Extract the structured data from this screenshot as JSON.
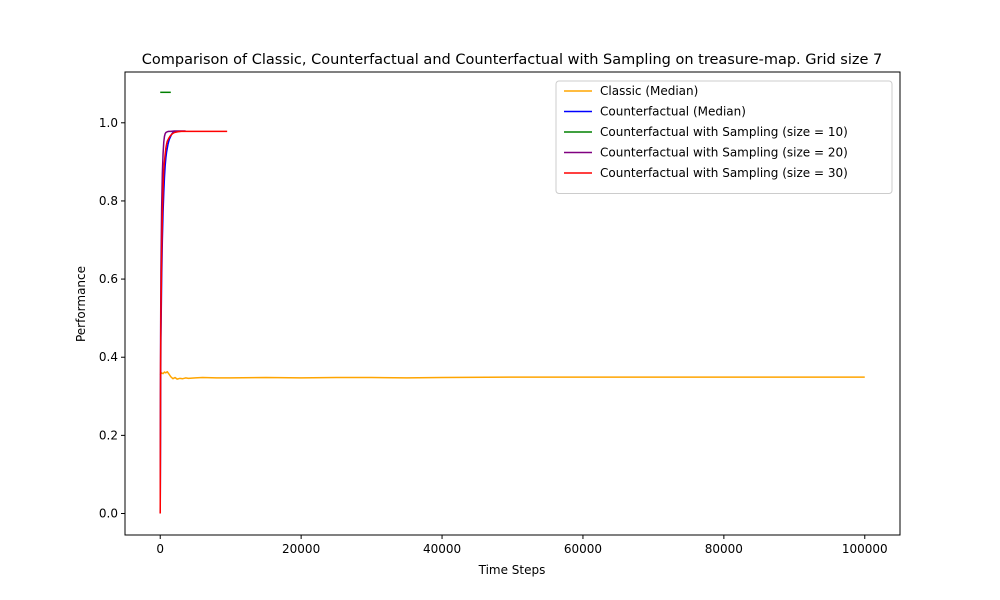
{
  "chart_data": {
    "type": "line",
    "title": "Comparison of Classic, Counterfactual and Counterfactual with Sampling on treasure-map. Grid size 7",
    "xlabel": "Time Steps",
    "ylabel": "Performance",
    "xlim": [
      -5000,
      105000
    ],
    "ylim": [
      -0.055,
      1.13
    ],
    "xticks": [
      0,
      20000,
      40000,
      60000,
      80000,
      100000
    ],
    "xtick_labels": [
      "0",
      "20000",
      "40000",
      "60000",
      "80000",
      "100000"
    ],
    "yticks": [
      0.0,
      0.2,
      0.4,
      0.6,
      0.8,
      1.0
    ],
    "ytick_labels": [
      "0.0",
      "0.2",
      "0.4",
      "0.6",
      "0.8",
      "1.0"
    ],
    "grid": false,
    "legend_position": "top-right",
    "series": [
      {
        "name": "Classic (Median)",
        "color": "#ffa500",
        "x": [
          0,
          200,
          400,
          600,
          800,
          1000,
          1200,
          1500,
          1800,
          2100,
          2400,
          2800,
          3200,
          3600,
          4000,
          5000,
          6000,
          8000,
          10000,
          15000,
          20000,
          25000,
          30000,
          35000,
          40000,
          50000,
          60000,
          70000,
          80000,
          90000,
          100000
        ],
        "y": [
          0.355,
          0.36,
          0.358,
          0.362,
          0.36,
          0.363,
          0.358,
          0.35,
          0.345,
          0.348,
          0.344,
          0.346,
          0.345,
          0.347,
          0.346,
          0.347,
          0.348,
          0.347,
          0.347,
          0.348,
          0.347,
          0.348,
          0.348,
          0.347,
          0.348,
          0.349,
          0.349,
          0.349,
          0.349,
          0.349,
          0.349
        ]
      },
      {
        "name": "Counterfactual (Median)",
        "color": "#0000ff",
        "x": [
          0,
          50,
          100,
          200,
          300,
          400,
          500,
          600,
          700,
          800,
          900,
          1000,
          1100,
          1200,
          1300,
          1400,
          1500,
          1600,
          1700,
          1800,
          2000,
          2300
        ],
        "y": [
          0.0,
          0.3,
          0.45,
          0.6,
          0.7,
          0.77,
          0.82,
          0.86,
          0.89,
          0.91,
          0.925,
          0.935,
          0.945,
          0.952,
          0.958,
          0.962,
          0.966,
          0.97,
          0.973,
          0.975,
          0.977,
          0.978
        ]
      },
      {
        "name": "Counterfactual with Sampling (size = 10)",
        "color": "#008000",
        "x": [
          0,
          1500
        ],
        "y": [
          1.078,
          1.078
        ]
      },
      {
        "name": "Counterfactual with Sampling (size = 20)",
        "color": "#800080",
        "x": [
          0,
          50,
          100,
          200,
          300,
          400,
          500,
          600,
          700,
          800,
          1000,
          1200,
          1500,
          2000,
          2500,
          3000,
          3600
        ],
        "y": [
          0.0,
          0.45,
          0.62,
          0.78,
          0.87,
          0.92,
          0.95,
          0.965,
          0.972,
          0.975,
          0.977,
          0.978,
          0.978,
          0.979,
          0.979,
          0.979,
          0.979
        ]
      },
      {
        "name": "Counterfactual with Sampling (size = 30)",
        "color": "#ff0000",
        "x": [
          0,
          50,
          100,
          200,
          300,
          400,
          500,
          600,
          700,
          800,
          900,
          1000,
          1200,
          1400,
          1600,
          1800,
          2000,
          2500,
          3000,
          4000,
          5000,
          6000,
          7000,
          8000,
          9500
        ],
        "y": [
          0.0,
          0.38,
          0.5,
          0.66,
          0.76,
          0.83,
          0.88,
          0.9,
          0.92,
          0.935,
          0.945,
          0.953,
          0.96,
          0.966,
          0.97,
          0.973,
          0.975,
          0.977,
          0.978,
          0.978,
          0.978,
          0.978,
          0.978,
          0.978,
          0.978
        ]
      }
    ]
  }
}
